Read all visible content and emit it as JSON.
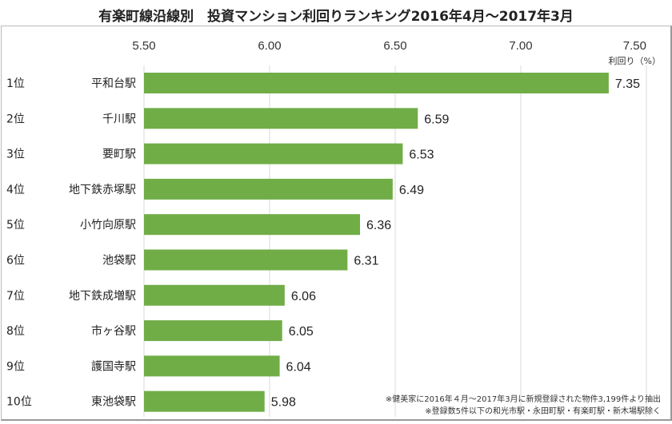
{
  "chart_data": {
    "type": "bar",
    "orientation": "horizontal",
    "title": "有楽町線沿線別　投資マンション利回りランキング2016年4月～2017年3月",
    "xlabel": "利回り（%）",
    "xlim": [
      5.5,
      7.5
    ],
    "xticks": [
      "5.50",
      "6.00",
      "6.50",
      "7.00",
      "7.50"
    ],
    "ranks": [
      "1位",
      "2位",
      "3位",
      "4位",
      "5位",
      "6位",
      "7位",
      "8位",
      "9位",
      "10位"
    ],
    "categories": [
      "平和台駅",
      "千川駅",
      "要町駅",
      "地下鉄赤塚駅",
      "小竹向原駅",
      "池袋駅",
      "地下鉄成増駅",
      "市ヶ谷駅",
      "護国寺駅",
      "東池袋駅"
    ],
    "values": [
      7.35,
      6.59,
      6.53,
      6.49,
      6.36,
      6.31,
      6.06,
      6.05,
      6.04,
      5.98
    ],
    "grid": true,
    "bar_color": "#70ad47"
  },
  "notes": [
    "※健美家に2016年４月～2017年3月に新規登録された物件3,199件より抽出",
    "※登録数5件以下の和光市駅・永田町駅・有楽町駅・新木場駅除く"
  ]
}
